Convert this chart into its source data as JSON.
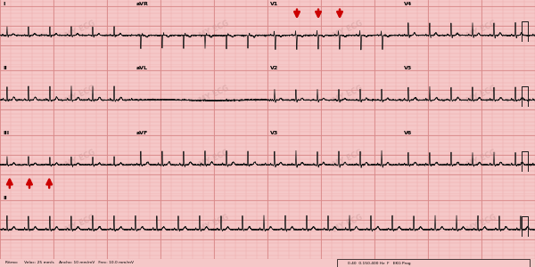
{
  "bg_color": "#f5c8c8",
  "grid_major_color": "#d88888",
  "grid_minor_color": "#edaaaa",
  "ecg_color": "#1a1a1a",
  "watermark_text": "MY ECG",
  "watermark_color": "#cc9999",
  "arrow_color": "#cc0000",
  "bottom_bar_color": "#c8c8c8",
  "fig_width": 6.0,
  "fig_height": 3.0,
  "dpi": 100,
  "hr": 150,
  "fs": 500,
  "row_labels_row0": [
    "I",
    "aVR",
    "V1",
    "V4"
  ],
  "row_labels_row1": [
    "II",
    "aVL",
    "V2",
    "V5"
  ],
  "row_labels_row2": [
    "III",
    "aVF",
    "V3",
    "V6"
  ],
  "row_labels_row3": [
    "II"
  ],
  "bottom_text": "Ritmo:     Veloc: 25 mm/s    Ancho: 10 mm/mV   Frec: 10.0 mm/mV",
  "bottom_right_text": "0.40  0.150.400 Hz  F   EKG Prog"
}
